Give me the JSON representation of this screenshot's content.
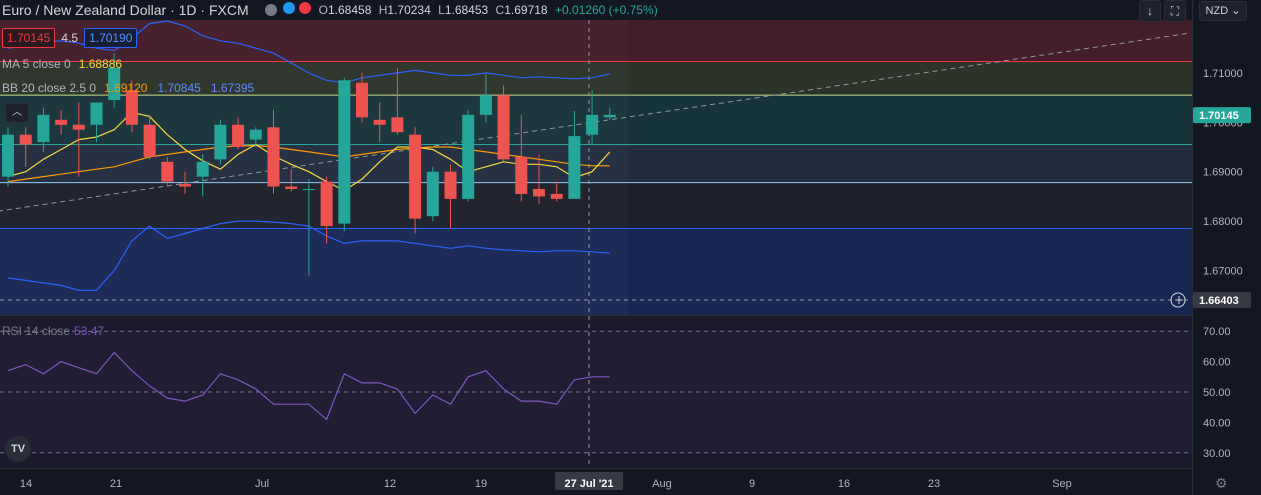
{
  "header": {
    "symbol_title": "Euro / New Zealand Dollar · 1D · FXCM",
    "dots": [
      "#787b86",
      "#2196f3",
      "#f23645"
    ],
    "ohlc": {
      "o_label": "O",
      "o": "1.68458",
      "h_label": "H",
      "h": "1.70234",
      "l_label": "L",
      "l": "1.68453",
      "c_label": "C",
      "c": "1.69718",
      "change": "+0.01260 (+0.75%)"
    }
  },
  "toolbar": {
    "down_arrow": "↓",
    "fullscreen": "⛶",
    "currency": "NZD ⌄"
  },
  "order_panel": {
    "sell": "1.70145",
    "spread": "4.5",
    "buy": "1.70190"
  },
  "indicators": {
    "ma_label": "MA 5 close 0",
    "ma_value": "1.68886",
    "bb_label": "BB 20 close 2.5 0",
    "bb_basis": "1.69120",
    "bb_upper": "1.70845",
    "bb_lower": "1.67395",
    "rsi_label": "RSI 14 close",
    "rsi_value": "53.47"
  },
  "price_axis": {
    "ticks": [
      "1.71000",
      "1.70000",
      "1.69000",
      "1.68000",
      "1.67000"
    ],
    "current_price_label": "1.70145",
    "crosshair_price_label": "1.66403",
    "crosshair_plus": "+"
  },
  "rsi_axis": {
    "ticks": [
      "70.00",
      "60.00",
      "50.00",
      "40.00",
      "30.00"
    ]
  },
  "time_axis": {
    "labels": [
      "14",
      "21",
      "Jul",
      "12",
      "19",
      "Aug",
      "9",
      "16",
      "23",
      "Sep"
    ],
    "crosshair_date": "27 Jul '21"
  },
  "colors": {
    "bull": "#26a69a",
    "bear": "#ef5350",
    "ma": "#f5d742",
    "bb_basis": "#ff9800",
    "bb_band": "#2962ff",
    "rsi": "#7e57c2",
    "bg": "#131722"
  },
  "logo_text": "TV",
  "settings_icon": "⚙",
  "chart_data": {
    "type": "candlestick",
    "ylim": [
      1.661,
      1.7207
    ],
    "rsi_ylim": [
      25,
      75
    ],
    "candles": [
      {
        "o": 1.689,
        "h": 1.699,
        "l": 1.687,
        "c": 1.6975
      },
      {
        "o": 1.6975,
        "h": 1.699,
        "l": 1.691,
        "c": 1.6955
      },
      {
        "o": 1.696,
        "h": 1.703,
        "l": 1.694,
        "c": 1.7015
      },
      {
        "o": 1.7005,
        "h": 1.7025,
        "l": 1.6975,
        "c": 1.6995
      },
      {
        "o": 1.6995,
        "h": 1.704,
        "l": 1.689,
        "c": 1.6985
      },
      {
        "o": 1.6995,
        "h": 1.704,
        "l": 1.696,
        "c": 1.704
      },
      {
        "o": 1.7045,
        "h": 1.714,
        "l": 1.703,
        "c": 1.711
      },
      {
        "o": 1.7065,
        "h": 1.7085,
        "l": 1.698,
        "c": 1.6995
      },
      {
        "o": 1.6995,
        "h": 1.7015,
        "l": 1.6925,
        "c": 1.693
      },
      {
        "o": 1.692,
        "h": 1.693,
        "l": 1.687,
        "c": 1.688
      },
      {
        "o": 1.6875,
        "h": 1.69,
        "l": 1.6855,
        "c": 1.687
      },
      {
        "o": 1.689,
        "h": 1.6935,
        "l": 1.685,
        "c": 1.692
      },
      {
        "o": 1.6925,
        "h": 1.7005,
        "l": 1.6915,
        "c": 1.6995
      },
      {
        "o": 1.6995,
        "h": 1.701,
        "l": 1.6945,
        "c": 1.695
      },
      {
        "o": 1.6965,
        "h": 1.699,
        "l": 1.695,
        "c": 1.6985
      },
      {
        "o": 1.699,
        "h": 1.7025,
        "l": 1.6855,
        "c": 1.687
      },
      {
        "o": 1.687,
        "h": 1.6905,
        "l": 1.686,
        "c": 1.6865
      },
      {
        "o": 1.6865,
        "h": 1.6885,
        "l": 1.669,
        "c": 1.6865
      },
      {
        "o": 1.688,
        "h": 1.689,
        "l": 1.6755,
        "c": 1.679
      },
      {
        "o": 1.6795,
        "h": 1.709,
        "l": 1.678,
        "c": 1.7085
      },
      {
        "o": 1.708,
        "h": 1.71,
        "l": 1.7,
        "c": 1.701
      },
      {
        "o": 1.7005,
        "h": 1.704,
        "l": 1.696,
        "c": 1.6995
      },
      {
        "o": 1.701,
        "h": 1.711,
        "l": 1.6975,
        "c": 1.698
      },
      {
        "o": 1.6975,
        "h": 1.699,
        "l": 1.6775,
        "c": 1.6805
      },
      {
        "o": 1.681,
        "h": 1.691,
        "l": 1.68,
        "c": 1.69
      },
      {
        "o": 1.69,
        "h": 1.6915,
        "l": 1.6785,
        "c": 1.6845
      },
      {
        "o": 1.6845,
        "h": 1.7025,
        "l": 1.684,
        "c": 1.7015
      },
      {
        "o": 1.7015,
        "h": 1.7098,
        "l": 1.7,
        "c": 1.7055
      },
      {
        "o": 1.7055,
        "h": 1.7075,
        "l": 1.692,
        "c": 1.6925
      },
      {
        "o": 1.693,
        "h": 1.7015,
        "l": 1.684,
        "c": 1.6855
      },
      {
        "o": 1.6865,
        "h": 1.6935,
        "l": 1.6835,
        "c": 1.685
      },
      {
        "o": 1.6855,
        "h": 1.688,
        "l": 1.684,
        "c": 1.6845
      },
      {
        "o": 1.6845,
        "h": 1.7023,
        "l": 1.6845,
        "c": 1.6972
      },
      {
        "o": 1.6975,
        "h": 1.7065,
        "l": 1.6955,
        "c": 1.7015
      },
      {
        "o": 1.701,
        "h": 1.703,
        "l": 1.7005,
        "c": 1.7015
      }
    ],
    "ma5": [
      1.689,
      1.69,
      1.6925,
      1.6945,
      1.6965,
      1.697,
      1.6985,
      1.702,
      1.7012,
      1.6975,
      1.6945,
      1.6922,
      1.6905,
      1.6935,
      1.6955,
      1.6932,
      1.6915,
      1.69,
      1.688,
      1.6862,
      1.6885,
      1.692,
      1.695,
      1.695,
      1.6945,
      1.6925,
      1.69,
      1.691,
      1.692,
      1.6915,
      1.6915,
      1.691,
      1.6888,
      1.69,
      1.694
    ],
    "bb_basis": [
      1.688,
      1.6885,
      1.689,
      1.6895,
      1.69,
      1.6905,
      1.691,
      1.692,
      1.693,
      1.6935,
      1.694,
      1.6945,
      1.695,
      1.6952,
      1.6953,
      1.695,
      1.6945,
      1.694,
      1.6935,
      1.693,
      1.6935,
      1.694,
      1.6945,
      1.6948,
      1.695,
      1.695,
      1.6945,
      1.694,
      1.6935,
      1.693,
      1.6925,
      1.692,
      1.6915,
      1.6912,
      1.6912
    ],
    "bb_upper": [
      1.715,
      1.7155,
      1.7162,
      1.7165,
      1.716,
      1.715,
      1.7145,
      1.717,
      1.72,
      1.7205,
      1.7195,
      1.7175,
      1.7165,
      1.716,
      1.715,
      1.714,
      1.712,
      1.71,
      1.7085,
      1.708,
      1.709,
      1.7095,
      1.71,
      1.7105,
      1.71,
      1.7095,
      1.7095,
      1.71,
      1.7095,
      1.709,
      1.7092,
      1.709,
      1.7088,
      1.709,
      1.7098
    ],
    "bb_lower": [
      1.6685,
      1.668,
      1.6675,
      1.667,
      1.666,
      1.666,
      1.67,
      1.676,
      1.679,
      1.6765,
      1.6775,
      1.6785,
      1.6795,
      1.68,
      1.68,
      1.6798,
      1.6795,
      1.679,
      1.677,
      1.6755,
      1.676,
      1.676,
      1.676,
      1.6755,
      1.675,
      1.6745,
      1.675,
      1.6745,
      1.6742,
      1.674,
      1.6738,
      1.674,
      1.674,
      1.6738,
      1.6735
    ],
    "rsi": [
      57,
      59,
      56,
      60,
      58,
      56,
      63,
      57,
      52,
      48,
      47,
      49,
      56,
      54,
      51,
      46,
      46,
      46,
      41,
      56,
      53,
      53,
      51,
      43,
      49,
      46,
      55,
      57,
      51,
      47,
      47,
      46,
      54,
      55,
      55
    ],
    "trendline": [
      [
        -2,
        1.682
      ],
      [
        1188,
        1.718
      ]
    ],
    "horizontal_levels": [
      {
        "price": 1.7123,
        "color": "#f23645"
      },
      {
        "price": 1.7055,
        "color": "#c6e08b"
      },
      {
        "price": 1.6955,
        "color": "#26a69a"
      },
      {
        "price": 1.6878,
        "color": "#90caf9"
      },
      {
        "price": 1.6785,
        "color": "#2962ff"
      }
    ]
  }
}
